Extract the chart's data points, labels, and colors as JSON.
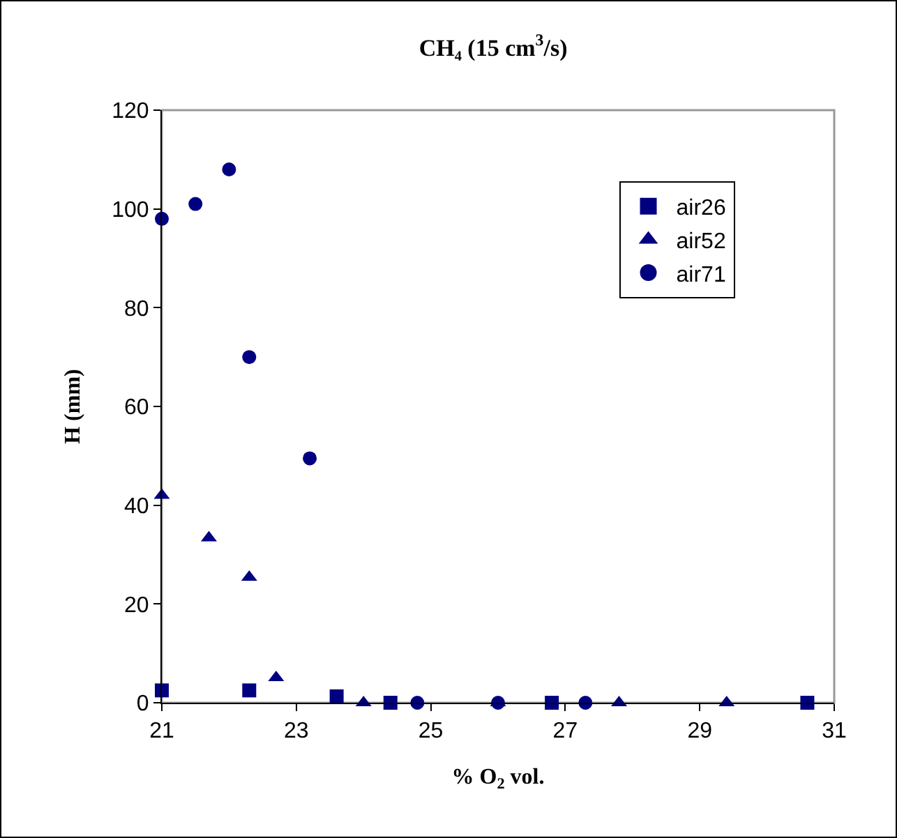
{
  "chart_data": {
    "type": "scatter",
    "title": "CH₄ (15 cm$^{3}$/s)",
    "xlabel": "% O$_{2}$ vol.",
    "ylabel": "H (mm)",
    "xlim": [
      21,
      31
    ],
    "xticks": [
      21,
      23,
      25,
      27,
      29,
      31
    ],
    "ylim": [
      0,
      120
    ],
    "yticks": [
      0,
      20,
      40,
      60,
      80,
      100,
      120
    ],
    "grid": false,
    "legend": "top right",
    "series": [
      {
        "name": "air26",
        "color": "#000080",
        "marker": "square",
        "x": [
          21.0,
          22.3,
          23.6,
          24.4,
          26.8,
          30.6
        ],
        "values": [
          2.5,
          2.5,
          1.3,
          0,
          0,
          0
        ]
      },
      {
        "name": "air52",
        "color": "#000080",
        "marker": "triangle",
        "x": [
          21.0,
          21.7,
          22.3,
          22.7,
          24.0,
          26.0,
          27.8,
          29.4
        ],
        "values": [
          42,
          33.4,
          25.4,
          5.1,
          0,
          0,
          0,
          0
        ]
      },
      {
        "name": "air71",
        "color": "#000080",
        "marker": "circle",
        "x": [
          21.0,
          21.5,
          22.0,
          22.3,
          23.2,
          24.8,
          26.0,
          27.3
        ],
        "values": [
          98,
          101,
          108,
          70,
          49.5,
          0,
          0,
          0
        ]
      }
    ]
  }
}
